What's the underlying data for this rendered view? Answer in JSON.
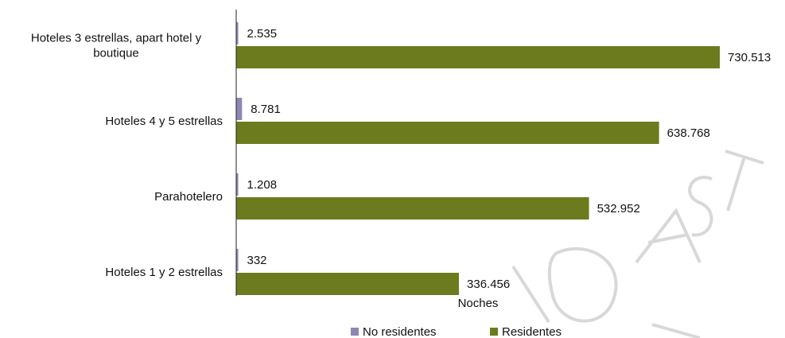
{
  "chart_data": {
    "type": "bar",
    "orientation": "horizontal",
    "categories": [
      [
        "Hoteles 3 estrellas, apart hotel y",
        "boutique"
      ],
      [
        "Hoteles 4 y 5 estrellas"
      ],
      [
        "Parahotelero"
      ],
      [
        "Hoteles 1 y 2 estrellas"
      ]
    ],
    "series": [
      {
        "name": "No residentes",
        "color": "#8c87b5",
        "values": [
          2535,
          8781,
          1208,
          332
        ],
        "labels": [
          "2.535",
          "8.781",
          "1.208",
          "332"
        ]
      },
      {
        "name": "Residentes",
        "color": "#6b7b1e",
        "values": [
          730513,
          638768,
          532952,
          336456
        ],
        "labels": [
          "730.513",
          "638.768",
          "532.952",
          "336.456"
        ]
      }
    ],
    "xlabel": "Noches",
    "xlim": [
      0,
      730513
    ],
    "grid": false,
    "legend_position": "bottom"
  }
}
